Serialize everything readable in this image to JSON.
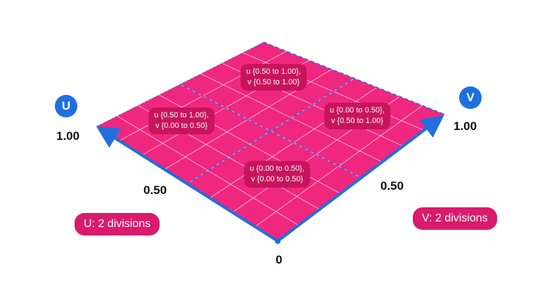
{
  "colors": {
    "surface": "#f0277f",
    "axis": "#1f6fe0",
    "grid": "#ffffff",
    "label_bg": "#c8145c",
    "division_bg": "#d81b6d"
  },
  "axes": {
    "u": {
      "name": "U",
      "ticks": [
        "0",
        "0.50",
        "1.00"
      ]
    },
    "v": {
      "name": "V",
      "ticks": [
        "0.50",
        "1.00"
      ]
    }
  },
  "regions": [
    {
      "u_range": "u {0.50 to 1.00},",
      "v_range": "v {0.50 to 1.00}"
    },
    {
      "u_range": "u {0.50 to 1.00},",
      "v_range": "v {0.00 to 0.50}"
    },
    {
      "u_range": "u {0.00 to 0.50},",
      "v_range": "v {0.50 to 1.00}"
    },
    {
      "u_range": "u {0.00 to 0.50},",
      "v_range": "v {0.00 to 0.50}"
    }
  ],
  "divisions": {
    "u_label": "U: 2 divisions",
    "v_label": "V: 2 divisions"
  }
}
